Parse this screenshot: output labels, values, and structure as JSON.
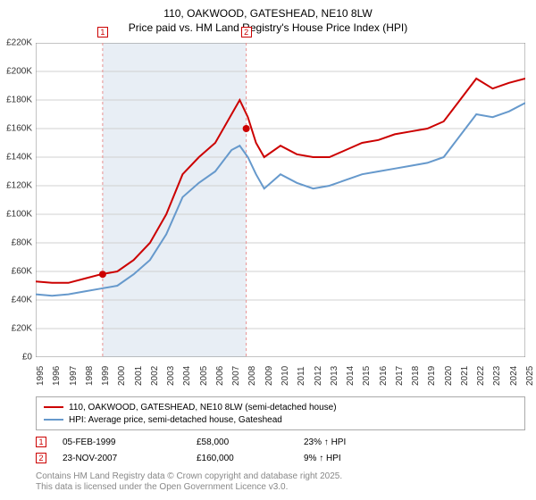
{
  "title": "110, OAKWOOD, GATESHEAD, NE10 8LW",
  "subtitle": "Price paid vs. HM Land Registry's House Price Index (HPI)",
  "chart": {
    "type": "line",
    "background_color": "#ffffff",
    "plot_background": "#ffffff",
    "grid_color": "#d0d0d0",
    "y_axis": {
      "min": 0,
      "max": 220000,
      "tick_step": 20000,
      "tick_labels": [
        "£0",
        "£20K",
        "£40K",
        "£60K",
        "£80K",
        "£100K",
        "£120K",
        "£140K",
        "£160K",
        "£180K",
        "£200K",
        "£220K"
      ],
      "label_fontsize": 10
    },
    "x_axis": {
      "min": 1995,
      "max": 2025,
      "ticks": [
        1995,
        1996,
        1997,
        1998,
        1999,
        2000,
        2001,
        2002,
        2003,
        2004,
        2005,
        2006,
        2007,
        2008,
        2009,
        2010,
        2011,
        2012,
        2013,
        2014,
        2015,
        2016,
        2017,
        2018,
        2019,
        2020,
        2021,
        2022,
        2023,
        2024,
        2025
      ],
      "label_fontsize": 10
    },
    "shaded_band": {
      "x_start": 1999.1,
      "x_end": 2007.9,
      "fill": "#e8eef5"
    },
    "markers": [
      {
        "label": "1",
        "x": 1999.1,
        "y": 58000,
        "border": "#cc0000",
        "text": "#cc0000",
        "dash_color": "#e89090"
      },
      {
        "label": "2",
        "x": 2007.9,
        "y": 160000,
        "border": "#cc0000",
        "text": "#cc0000",
        "dash_color": "#e89090"
      }
    ],
    "series": [
      {
        "name": "110, OAKWOOD, GATESHEAD, NE10 8LW (semi-detached house)",
        "color": "#cc0000",
        "line_width": 2,
        "x": [
          1995,
          1996,
          1997,
          1998,
          1999,
          1999.5,
          2000,
          2001,
          2002,
          2003,
          2004,
          2005,
          2006,
          2007,
          2007.5,
          2008,
          2008.5,
          2009,
          2010,
          2011,
          2012,
          2013,
          2014,
          2015,
          2016,
          2017,
          2018,
          2019,
          2020,
          2021,
          2022,
          2023,
          2024,
          2025
        ],
        "y": [
          53000,
          52000,
          52000,
          55000,
          58000,
          59000,
          60000,
          68000,
          80000,
          100000,
          128000,
          140000,
          150000,
          170000,
          180000,
          168000,
          150000,
          140000,
          148000,
          142000,
          140000,
          140000,
          145000,
          150000,
          152000,
          156000,
          158000,
          160000,
          165000,
          180000,
          195000,
          188000,
          192000,
          195000
        ]
      },
      {
        "name": "HPI: Average price, semi-detached house, Gateshead",
        "color": "#6699cc",
        "line_width": 2,
        "x": [
          1995,
          1996,
          1997,
          1998,
          1999,
          2000,
          2001,
          2002,
          2003,
          2004,
          2005,
          2006,
          2007,
          2007.5,
          2008,
          2008.5,
          2009,
          2010,
          2011,
          2012,
          2013,
          2014,
          2015,
          2016,
          2017,
          2018,
          2019,
          2020,
          2021,
          2022,
          2023,
          2024,
          2025
        ],
        "y": [
          44000,
          43000,
          44000,
          46000,
          48000,
          50000,
          58000,
          68000,
          86000,
          112000,
          122000,
          130000,
          145000,
          148000,
          140000,
          128000,
          118000,
          128000,
          122000,
          118000,
          120000,
          124000,
          128000,
          130000,
          132000,
          134000,
          136000,
          140000,
          155000,
          170000,
          168000,
          172000,
          178000
        ]
      }
    ]
  },
  "legend": {
    "rows": [
      {
        "color": "#cc0000",
        "label": "110, OAKWOOD, GATESHEAD, NE10 8LW (semi-detached house)"
      },
      {
        "color": "#6699cc",
        "label": "HPI: Average price, semi-detached house, Gateshead"
      }
    ]
  },
  "data_points": {
    "rows": [
      {
        "n": "1",
        "border": "#cc0000",
        "date": "05-FEB-1999",
        "price": "£58,000",
        "pct": "23% ↑ HPI"
      },
      {
        "n": "2",
        "border": "#cc0000",
        "date": "23-NOV-2007",
        "price": "£160,000",
        "pct": "9% ↑ HPI"
      }
    ]
  },
  "attribution": {
    "line1": "Contains HM Land Registry data © Crown copyright and database right 2025.",
    "line2": "This data is licensed under the Open Government Licence v3.0."
  }
}
